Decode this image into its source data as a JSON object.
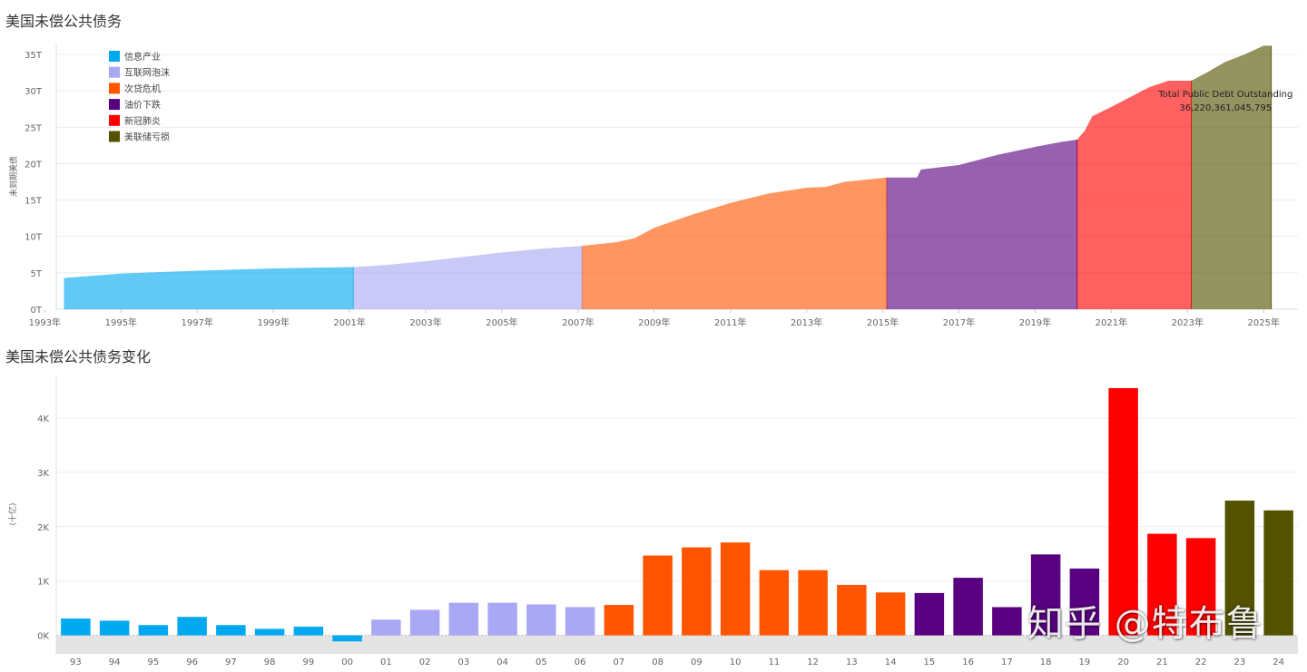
{
  "watermark": "知乎 @特布鲁",
  "colors": {
    "info_industry": "#00a8f0",
    "dotcom": "#a8a8f4",
    "subprime": "#ff5500",
    "oil": "#580080",
    "covid": "#ff0000",
    "fed_loss": "#525200",
    "grid": "#ececec",
    "axis_text": "#666666",
    "zero_band": "#e4e4e4"
  },
  "chart_data": [
    {
      "type": "area",
      "title": "美国未偿公共债务",
      "ylabel": "未到期美债",
      "xlabel": "",
      "ylim": [
        0,
        36.5
      ],
      "xlim": [
        1993.3,
        2025.9
      ],
      "y_ticks": [
        0,
        5,
        10,
        15,
        20,
        25,
        30,
        35
      ],
      "y_tick_labels": [
        "0T",
        "5T",
        "10T",
        "15T",
        "20T",
        "25T",
        "30T",
        "35T"
      ],
      "x_ticks": [
        1993,
        1995,
        1997,
        1999,
        2001,
        2003,
        2005,
        2007,
        2009,
        2011,
        2013,
        2015,
        2017,
        2019,
        2021,
        2023,
        2025
      ],
      "x_tick_labels": [
        "1993年",
        "1995年",
        "1997年",
        "1999年",
        "2001年",
        "2003年",
        "2005年",
        "2007年",
        "2009年",
        "2011年",
        "2013年",
        "2015年",
        "2017年",
        "2019年",
        "2021年",
        "2023年",
        "2025年"
      ],
      "legend": [
        {
          "label": "信息产业",
          "color": "#00a8f0"
        },
        {
          "label": "互联网泡沫",
          "color": "#a8a8f4"
        },
        {
          "label": "次贷危机",
          "color": "#ff5500"
        },
        {
          "label": "油价下跌",
          "color": "#580080"
        },
        {
          "label": "新冠肺炎",
          "color": "#ff0000"
        },
        {
          "label": "美联储亏损",
          "color": "#525200"
        }
      ],
      "legend_position": "top-left",
      "annotation": {
        "label": "Total Public Debt Outstanding",
        "value": "36,220,361,045,795"
      },
      "series": [
        {
          "name": "信息产业",
          "color": "#00a8f0",
          "x": [
            1993.5,
            1995,
            1997,
            1999,
            2000,
            2001.1
          ],
          "y": [
            4.3,
            4.9,
            5.3,
            5.6,
            5.7,
            5.8
          ]
        },
        {
          "name": "互联网泡沫",
          "color": "#a8a8f4",
          "x": [
            2001.1,
            2002,
            2003,
            2004,
            2005,
            2006,
            2007.1
          ],
          "y": [
            5.8,
            6.1,
            6.6,
            7.2,
            7.8,
            8.3,
            8.7
          ]
        },
        {
          "name": "次贷危机",
          "color": "#ff5500",
          "x": [
            2007.1,
            2008,
            2008.5,
            2009,
            2010,
            2011,
            2012,
            2013,
            2013.5,
            2014,
            2015.1
          ],
          "y": [
            8.7,
            9.2,
            9.8,
            11.2,
            13.0,
            14.6,
            15.9,
            16.7,
            16.8,
            17.5,
            18.1
          ]
        },
        {
          "name": "油价下跌",
          "color": "#580080",
          "x": [
            2015.1,
            2015.9,
            2016,
            2017,
            2018,
            2019,
            2019.7,
            2020.1
          ],
          "y": [
            18.1,
            18.1,
            19.2,
            19.8,
            21.2,
            22.3,
            23.0,
            23.3
          ]
        },
        {
          "name": "新冠肺炎",
          "color": "#ff0000",
          "x": [
            2020.1,
            2020.3,
            2020.5,
            2021,
            2022,
            2022.5,
            2023.1
          ],
          "y": [
            23.3,
            24.5,
            26.5,
            27.8,
            30.5,
            31.4,
            31.4
          ]
        },
        {
          "name": "美联储亏损",
          "color": "#525200",
          "x": [
            2023.1,
            2023.5,
            2024,
            2024.5,
            2025,
            2025.2
          ],
          "y": [
            31.4,
            32.5,
            34.0,
            35.0,
            36.2,
            36.2
          ]
        }
      ]
    },
    {
      "type": "bar",
      "title": "美国未偿公共债务变化",
      "ylabel": "(十亿)",
      "xlabel": "",
      "ylim": [
        -340,
        4800
      ],
      "y_ticks": [
        0,
        1000,
        2000,
        3000,
        4000
      ],
      "y_tick_labels": [
        "0K",
        "1K",
        "2K",
        "3K",
        "4K"
      ],
      "categories": [
        "93",
        "94",
        "95",
        "96",
        "97",
        "98",
        "99",
        "00",
        "01",
        "02",
        "03",
        "04",
        "05",
        "06",
        "07",
        "08",
        "09",
        "10",
        "11",
        "12",
        "13",
        "14",
        "15",
        "16",
        "17",
        "18",
        "19",
        "20",
        "21",
        "22",
        "23",
        "24"
      ],
      "values": [
        310,
        270,
        190,
        340,
        190,
        120,
        160,
        -110,
        290,
        470,
        600,
        600,
        570,
        520,
        560,
        1470,
        1620,
        1710,
        1200,
        1200,
        930,
        790,
        780,
        1060,
        520,
        1490,
        1230,
        4550,
        1870,
        1790,
        2480,
        2300
      ],
      "groups": [
        "信息产业",
        "信息产业",
        "信息产业",
        "信息产业",
        "信息产业",
        "信息产业",
        "信息产业",
        "信息产业",
        "互联网泡沫",
        "互联网泡沫",
        "互联网泡沫",
        "互联网泡沫",
        "互联网泡沫",
        "互联网泡沫",
        "次贷危机",
        "次贷危机",
        "次贷危机",
        "次贷危机",
        "次贷危机",
        "次贷危机",
        "次贷危机",
        "次贷危机",
        "油价下跌",
        "油价下跌",
        "油价下跌",
        "油价下跌",
        "油价下跌",
        "新冠肺炎",
        "新冠肺炎",
        "新冠肺炎",
        "美联储亏损",
        "美联储亏损"
      ],
      "colors": [
        "#00a8f0",
        "#00a8f0",
        "#00a8f0",
        "#00a8f0",
        "#00a8f0",
        "#00a8f0",
        "#00a8f0",
        "#00a8f0",
        "#a8a8f4",
        "#a8a8f4",
        "#a8a8f4",
        "#a8a8f4",
        "#a8a8f4",
        "#a8a8f4",
        "#ff5500",
        "#ff5500",
        "#ff5500",
        "#ff5500",
        "#ff5500",
        "#ff5500",
        "#ff5500",
        "#ff5500",
        "#580080",
        "#580080",
        "#580080",
        "#580080",
        "#580080",
        "#ff0000",
        "#ff0000",
        "#ff0000",
        "#525200",
        "#525200"
      ]
    }
  ]
}
